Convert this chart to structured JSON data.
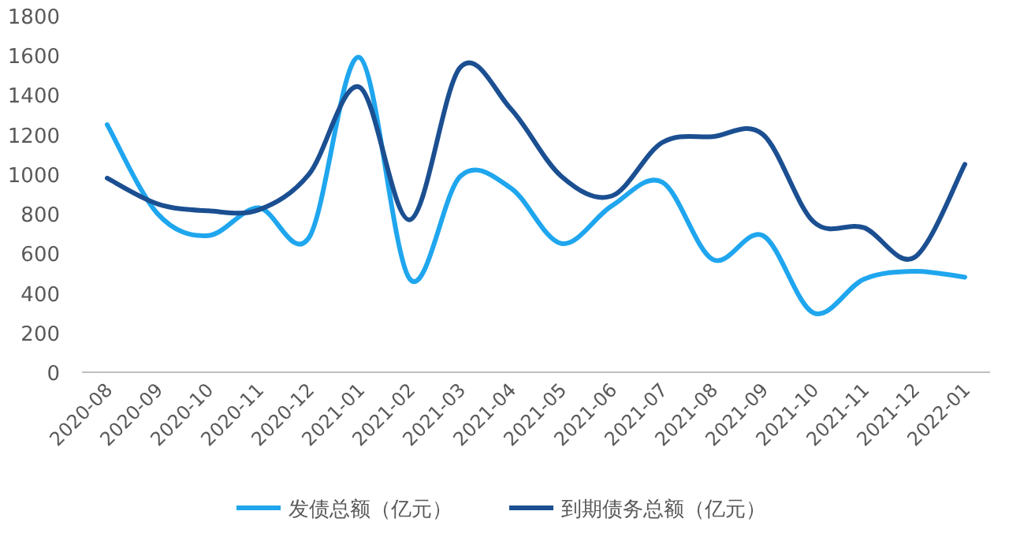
{
  "chart_data": {
    "type": "line",
    "categories": [
      "2020-08",
      "2020-09",
      "2020-10",
      "2020-11",
      "2020-12",
      "2021-01",
      "2021-02",
      "2021-03",
      "2021-04",
      "2021-05",
      "2021-06",
      "2021-07",
      "2021-08",
      "2021-09",
      "2021-10",
      "2021-11",
      "2021-12",
      "2022-01"
    ],
    "series": [
      {
        "name": "发债总额（亿元）",
        "color": "#1fa6ee",
        "values": [
          1250,
          800,
          690,
          830,
          680,
          1590,
          470,
          990,
          930,
          650,
          840,
          960,
          570,
          690,
          300,
          470,
          510,
          480
        ]
      },
      {
        "name": "到期债务总额（亿元）",
        "color": "#1b4f91",
        "values": [
          980,
          850,
          815,
          820,
          1000,
          1440,
          770,
          1540,
          1330,
          990,
          890,
          1160,
          1190,
          1200,
          760,
          730,
          580,
          1050
        ]
      }
    ],
    "ylim": [
      0,
      1800
    ],
    "yticks": [
      0,
      200,
      400,
      600,
      800,
      1000,
      1200,
      1400,
      1600,
      1800
    ],
    "legend": "bottom"
  }
}
